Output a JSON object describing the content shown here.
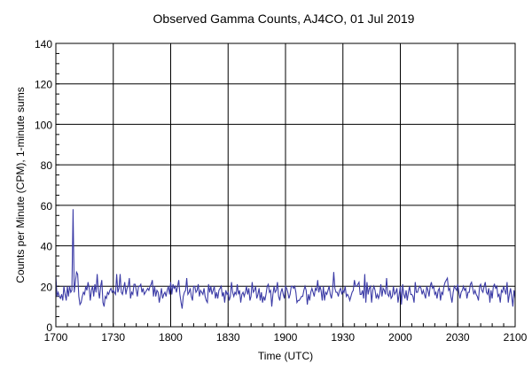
{
  "chart_data": {
    "type": "line",
    "title": "Observed Gamma Counts, AJ4CO, 01 Jul 2019",
    "xlabel": "Time (UTC)",
    "ylabel": "Counts per Minute (CPM), 1-minute sums",
    "x_start": "1700",
    "x_step_minutes": 1,
    "x_ticks": [
      "1700",
      "1730",
      "1800",
      "1830",
      "1900",
      "1930",
      "2000",
      "2030",
      "2100"
    ],
    "y_ticks": [
      "0",
      "20",
      "40",
      "60",
      "80",
      "100",
      "120",
      "140"
    ],
    "ylim": [
      0,
      140
    ],
    "xlim": [
      "1700",
      "2100"
    ],
    "grid": true,
    "series_color": "#3b3ba6",
    "values": [
      25,
      15,
      17,
      15,
      14,
      16,
      13,
      20,
      16,
      13,
      20,
      15,
      20,
      17,
      18,
      58,
      17,
      22,
      27,
      26,
      15,
      11,
      12,
      15,
      17,
      16,
      20,
      18,
      22,
      19,
      13,
      18,
      20,
      15,
      21,
      17,
      26,
      18,
      14,
      20,
      23,
      12,
      10,
      15,
      14,
      17,
      16,
      18,
      19,
      17,
      18,
      17,
      16,
      26,
      17,
      19,
      26,
      17,
      16,
      19,
      22,
      16,
      19,
      20,
      24,
      14,
      17,
      16,
      21,
      21,
      18,
      15,
      20,
      20,
      21,
      17,
      19,
      16,
      17,
      18,
      19,
      18,
      20,
      21,
      23,
      15,
      20,
      15,
      18,
      17,
      12,
      15,
      19,
      14,
      16,
      17,
      15,
      18,
      20,
      16,
      22,
      16,
      21,
      19,
      20,
      17,
      20,
      23,
      16,
      12,
      9,
      15,
      17,
      18,
      24,
      16,
      17,
      19,
      15,
      13,
      20,
      20,
      17,
      18,
      21,
      15,
      18,
      17,
      16,
      19,
      15,
      13,
      12,
      21,
      17,
      20,
      16,
      18,
      20,
      14,
      17,
      14,
      18,
      19,
      20,
      15,
      17,
      12,
      18,
      16,
      17,
      13,
      15,
      22,
      17,
      15,
      17,
      16,
      21,
      16,
      18,
      12,
      16,
      17,
      15,
      17,
      20,
      16,
      19,
      13,
      15,
      22,
      17,
      18,
      20,
      14,
      16,
      19,
      13,
      17,
      12,
      15,
      13,
      16,
      20,
      21,
      17,
      18,
      10,
      16,
      20,
      17,
      18,
      22,
      15,
      13,
      17,
      19,
      16,
      14,
      20,
      19,
      17,
      14,
      16,
      20,
      20,
      19,
      20,
      17,
      12,
      13,
      13,
      14,
      15,
      15,
      18,
      20,
      18,
      11,
      16,
      13,
      17,
      19,
      17,
      15,
      19,
      18,
      23,
      17,
      20,
      18,
      13,
      20,
      13,
      17,
      16,
      18,
      20,
      16,
      14,
      18,
      27,
      19,
      17,
      17,
      15,
      18,
      19,
      16,
      18,
      17,
      20,
      15,
      16,
      15,
      13,
      15,
      17,
      18,
      23,
      20,
      20,
      21,
      22,
      16,
      16,
      18,
      14,
      26,
      12,
      22,
      16,
      19,
      20,
      12,
      18,
      20,
      18,
      14,
      16,
      14,
      16,
      21,
      15,
      19,
      18,
      16,
      24,
      16,
      15,
      18,
      14,
      15,
      20,
      16,
      17,
      19,
      12,
      16,
      20,
      11,
      21,
      16,
      14,
      18,
      13,
      17,
      20,
      16,
      16,
      15,
      12,
      22,
      17,
      17,
      19,
      20,
      19,
      16,
      18,
      16,
      14,
      20,
      18,
      15,
      20,
      22,
      19,
      20,
      16,
      17,
      14,
      18,
      19,
      13,
      17,
      16,
      20,
      22,
      23,
      24,
      18,
      19,
      15,
      12,
      17,
      20,
      19,
      18,
      21,
      17,
      14,
      17,
      18,
      20,
      18,
      19,
      14,
      17,
      17,
      21,
      22,
      19,
      16,
      18,
      16,
      15,
      13,
      20,
      21,
      18,
      17,
      20,
      22,
      17,
      16,
      19,
      12,
      18,
      14,
      20,
      21,
      19,
      20,
      15,
      16,
      12,
      18,
      17,
      20,
      18,
      16,
      22,
      12,
      16,
      19,
      15,
      10,
      18,
      14
    ]
  }
}
